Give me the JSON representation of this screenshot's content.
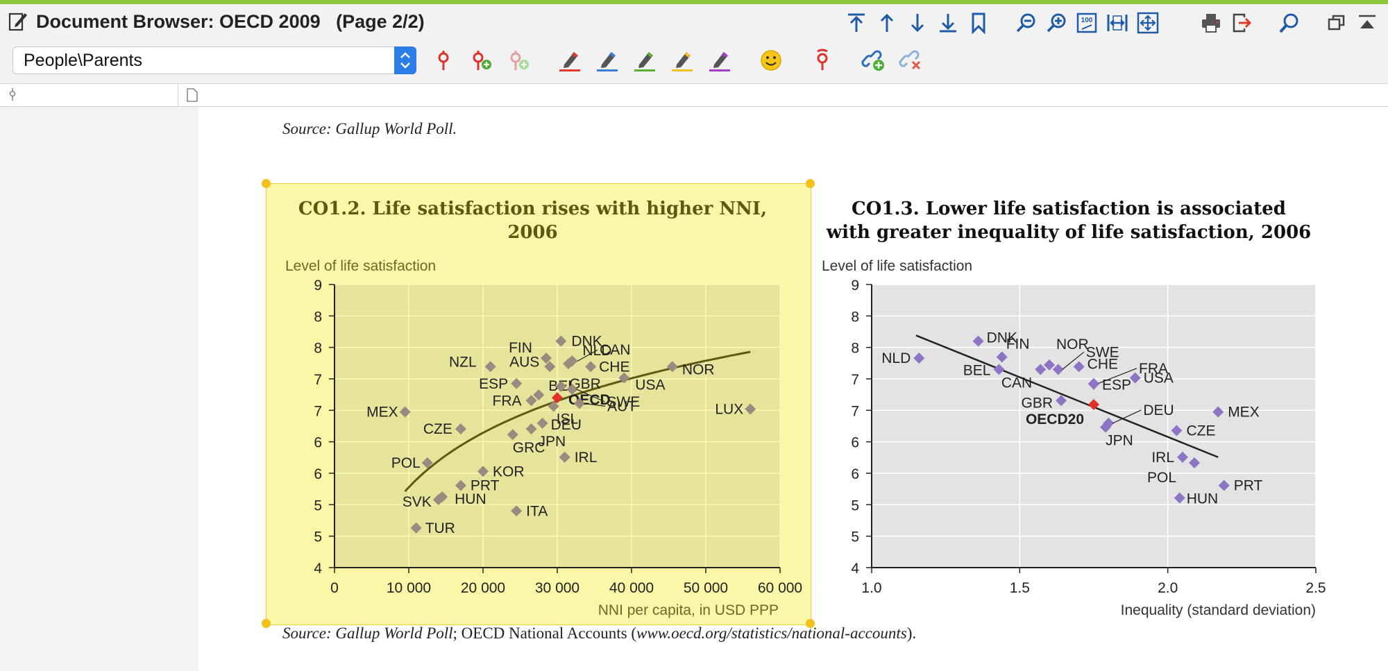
{
  "window": {
    "title": "Document Browser: OECD 2009   (Page 2/2)"
  },
  "toolbar": {
    "buttons": [
      {
        "name": "go-first-page-icon"
      },
      {
        "name": "go-previous-page-icon"
      },
      {
        "name": "go-next-page-icon"
      },
      {
        "name": "go-last-page-icon"
      },
      {
        "name": "bookmark-icon"
      },
      {
        "name": "zoom-out-icon"
      },
      {
        "name": "zoom-in-icon"
      },
      {
        "name": "zoom-100-icon",
        "text": "100"
      },
      {
        "name": "fit-width-icon"
      },
      {
        "name": "fit-page-icon"
      },
      {
        "name": "print-icon"
      },
      {
        "name": "export-icon"
      },
      {
        "name": "search-icon"
      },
      {
        "name": "restore-window-icon"
      },
      {
        "name": "collapse-icon"
      }
    ]
  },
  "code_selector": {
    "value": "People\\Parents"
  },
  "coding_tools": {
    "buttons": [
      {
        "name": "code-icon",
        "color": "#e0322b"
      },
      {
        "name": "new-code-icon",
        "color": "#e0322b"
      },
      {
        "name": "in-vivo-code-icon",
        "color": "#e0a0a0"
      },
      {
        "name": "highlight-red-icon",
        "color": "#e03a2a"
      },
      {
        "name": "highlight-blue-icon",
        "color": "#3a7dd8"
      },
      {
        "name": "highlight-green-icon",
        "color": "#5cb030"
      },
      {
        "name": "highlight-yellow-icon",
        "color": "#f0c020"
      },
      {
        "name": "highlight-purple-icon",
        "color": "#a43ad0"
      },
      {
        "name": "emoticon-icon",
        "color": "#f5c518"
      },
      {
        "name": "symbol-code-icon",
        "color": "#e0322b"
      },
      {
        "name": "link-add-icon",
        "color": "#2a6fbf"
      },
      {
        "name": "link-remove-icon",
        "color": "#8ab0d8"
      }
    ]
  },
  "document": {
    "source_top": "Source:  Gallup World Poll.",
    "source_bottom_prefix": "Source:  Gallup World Poll",
    "source_bottom_mid": "; OECD National Accounts (",
    "source_bottom_url": "www.oecd.org/statistics/national-accounts",
    "source_bottom_suffix": ")."
  },
  "chart_data": [
    {
      "id": "CO1.2",
      "type": "scatter",
      "title_line1": "CO1.2.  Life satisfaction rises with higher NNI,",
      "title_line2": "2006",
      "ylabel": "Level of life satisfaction",
      "xlabel": "NNI per capita, in USD PPP",
      "x_ticks": [
        "0",
        "10 000",
        "20 000",
        "30 000",
        "40 000",
        "50 000",
        "60 000"
      ],
      "y_ticks": [
        "4",
        "5",
        "5",
        "6",
        "6",
        "7",
        "7",
        "8",
        "8",
        "9"
      ],
      "xlim": [
        0,
        60000
      ],
      "ylim": [
        4,
        9
      ],
      "trend": "logarithmic",
      "points": [
        {
          "label": "DNK",
          "x": 30500,
          "y": 8.0
        },
        {
          "label": "CAN",
          "x": 31500,
          "y": 7.6
        },
        {
          "label": "FIN",
          "x": 28500,
          "y": 7.7
        },
        {
          "label": "NLD",
          "x": 32000,
          "y": 7.65
        },
        {
          "label": "NZL",
          "x": 21000,
          "y": 7.55
        },
        {
          "label": "AUS",
          "x": 29000,
          "y": 7.55
        },
        {
          "label": "CHE",
          "x": 34500,
          "y": 7.55
        },
        {
          "label": "NOR",
          "x": 45500,
          "y": 7.55
        },
        {
          "label": "ESP",
          "x": 24500,
          "y": 7.25
        },
        {
          "label": "BEL",
          "x": 27500,
          "y": 7.05
        },
        {
          "label": "GBR",
          "x": 30500,
          "y": 7.2
        },
        {
          "label": "USA",
          "x": 39000,
          "y": 7.35
        },
        {
          "label": "FRA",
          "x": 26500,
          "y": 6.95
        },
        {
          "label": "OECD",
          "x": 30000,
          "y": 7.0
        },
        {
          "label": "ISL",
          "x": 29500,
          "y": 6.85
        },
        {
          "label": "SWE",
          "x": 32000,
          "y": 7.15
        },
        {
          "label": "LUX",
          "x": 56000,
          "y": 6.8
        },
        {
          "label": "MEX",
          "x": 9500,
          "y": 6.75
        },
        {
          "label": "DEU",
          "x": 28000,
          "y": 6.55
        },
        {
          "label": "AUT",
          "x": 33000,
          "y": 6.9
        },
        {
          "label": "JPN",
          "x": 26500,
          "y": 6.45
        },
        {
          "label": "CZE",
          "x": 17000,
          "y": 6.45
        },
        {
          "label": "GRC",
          "x": 24000,
          "y": 6.35
        },
        {
          "label": "IRL",
          "x": 31000,
          "y": 5.95
        },
        {
          "label": "POL",
          "x": 12500,
          "y": 5.85
        },
        {
          "label": "KOR",
          "x": 20000,
          "y": 5.7
        },
        {
          "label": "PRT",
          "x": 17000,
          "y": 5.45
        },
        {
          "label": "HUN",
          "x": 14500,
          "y": 5.25
        },
        {
          "label": "SVK",
          "x": 14000,
          "y": 5.2
        },
        {
          "label": "ITA",
          "x": 24500,
          "y": 5.0
        },
        {
          "label": "TUR",
          "x": 11000,
          "y": 4.7
        }
      ]
    },
    {
      "id": "CO1.3",
      "type": "scatter",
      "title_line1": "CO1.3.  Lower life satisfaction is associated",
      "title_line2": "with greater inequality of life satisfaction, 2006",
      "ylabel": "Level of life satisfaction",
      "xlabel": "Inequality (standard deviation)",
      "x_ticks": [
        "1.0",
        "1.5",
        "2.0",
        "2.5"
      ],
      "y_ticks": [
        "4",
        "5",
        "5",
        "6",
        "6",
        "7",
        "7",
        "8",
        "8",
        "9"
      ],
      "xlim": [
        1.0,
        2.5
      ],
      "ylim": [
        4,
        9
      ],
      "trend": "linear",
      "points": [
        {
          "label": "NLD",
          "x": 1.16,
          "y": 7.7
        },
        {
          "label": "DNK",
          "x": 1.36,
          "y": 8.0
        },
        {
          "label": "FIN",
          "x": 1.44,
          "y": 7.72
        },
        {
          "label": "BEL",
          "x": 1.43,
          "y": 7.5
        },
        {
          "label": "NOR",
          "x": 1.6,
          "y": 7.58
        },
        {
          "label": "SWE",
          "x": 1.63,
          "y": 7.5
        },
        {
          "label": "CAN",
          "x": 1.57,
          "y": 7.5
        },
        {
          "label": "CHE",
          "x": 1.7,
          "y": 7.55
        },
        {
          "label": "FRA",
          "x": 1.75,
          "y": 7.25
        },
        {
          "label": "ESP",
          "x": 1.75,
          "y": 7.24
        },
        {
          "label": "USA",
          "x": 1.89,
          "y": 7.35
        },
        {
          "label": "GBR",
          "x": 1.64,
          "y": 6.95
        },
        {
          "label": "OECD20",
          "x": 1.75,
          "y": 6.88
        },
        {
          "label": "DEU",
          "x": 1.8,
          "y": 6.55
        },
        {
          "label": "JPN",
          "x": 1.79,
          "y": 6.48
        },
        {
          "label": "MEX",
          "x": 2.17,
          "y": 6.75
        },
        {
          "label": "CZE",
          "x": 2.03,
          "y": 6.42
        },
        {
          "label": "IRL",
          "x": 2.05,
          "y": 5.95
        },
        {
          "label": "POL",
          "x": 2.09,
          "y": 5.85
        },
        {
          "label": "PRT",
          "x": 2.19,
          "y": 5.45
        },
        {
          "label": "HUN",
          "x": 2.04,
          "y": 5.23
        }
      ],
      "fit_line": {
        "x": [
          1.15,
          2.17
        ],
        "y": [
          8.1,
          5.95
        ]
      }
    }
  ]
}
